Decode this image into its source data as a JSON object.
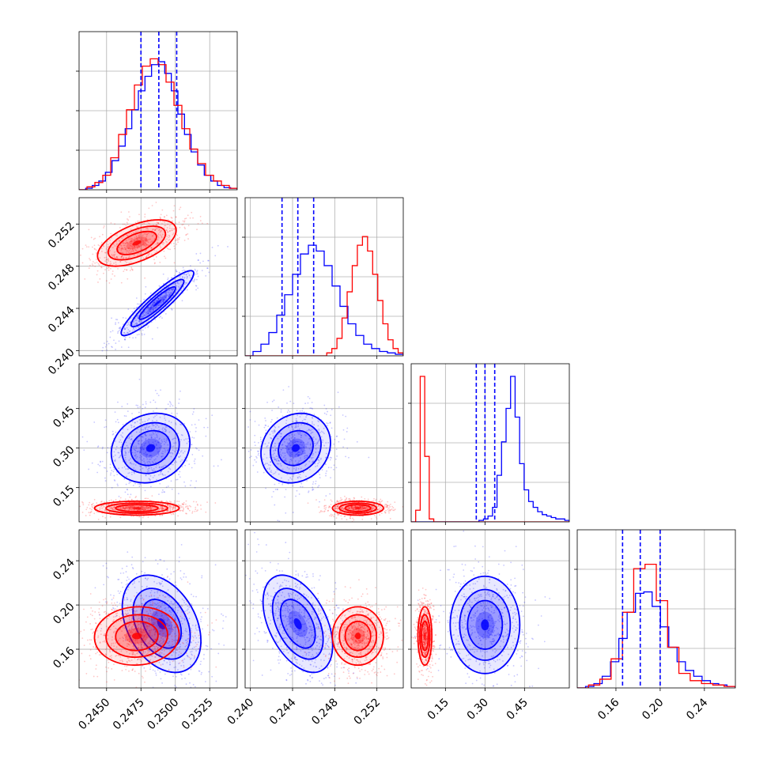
{
  "chart_data": {
    "type": "scatter",
    "colors": {
      "series_a": "#0000ff",
      "series_b": "#ff0000"
    },
    "grid": true,
    "title": "",
    "variables": [
      {
        "range": [
          0.243,
          0.2545
        ],
        "ticks": [
          "0.2450",
          "0.2475",
          "0.2500",
          "0.2525"
        ]
      },
      {
        "range": [
          0.2395,
          0.2545
        ],
        "ticks": [
          "0.240",
          "0.244",
          "0.248",
          "0.252"
        ]
      },
      {
        "range": [
          0.02,
          0.62
        ],
        "ticks": [
          "0.15",
          "0.30",
          "0.45"
        ]
      },
      {
        "range": [
          0.125,
          0.268
        ],
        "ticks": [
          "0.16",
          "0.20",
          "0.24"
        ]
      }
    ],
    "quantiles_series_a": [
      [
        0.2475,
        0.2488,
        0.2501
      ],
      [
        0.243,
        0.2445,
        0.246
      ],
      [
        0.267,
        0.3,
        0.337
      ],
      [
        0.166,
        0.182,
        0.2
      ]
    ],
    "series": [
      {
        "color": "#0000ff",
        "centers": [
          {
            "x": 0.2487,
            "y": 0.2445,
            "sx": 0.0012,
            "sy": 0.0014,
            "rho": 0.92
          },
          {
            "x": 0.2482,
            "y": 0.3,
            "sx": 0.0013,
            "sy": 0.06,
            "rho": 0.15
          },
          {
            "x": 0.2443,
            "y": 0.3,
            "sx": 0.0015,
            "sy": 0.06,
            "rho": 0.15
          },
          {
            "x": 0.249,
            "y": 0.183,
            "sx": 0.0013,
            "sy": 0.02,
            "rho": -0.35
          },
          {
            "x": 0.2445,
            "y": 0.183,
            "sx": 0.0015,
            "sy": 0.02,
            "rho": -0.45
          },
          {
            "x": 0.3,
            "y": 0.182,
            "sx": 0.06,
            "sy": 0.02,
            "rho": 0.0
          }
        ],
        "hist": [
          [
            0,
            0.01,
            0.03,
            0.06,
            0.12,
            0.2,
            0.3,
            0.42,
            0.55,
            0.68,
            0.78,
            0.86,
            0.88,
            0.8,
            0.68,
            0.52,
            0.38,
            0.26,
            0.17,
            0.1,
            0.06,
            0.03,
            0.015,
            0.01
          ],
          [
            0,
            0.03,
            0.08,
            0.16,
            0.28,
            0.42,
            0.56,
            0.7,
            0.76,
            0.72,
            0.62,
            0.48,
            0.34,
            0.22,
            0.14,
            0.08,
            0.05,
            0.03,
            0.02,
            0.01
          ],
          [
            0,
            0,
            0,
            0,
            0,
            0,
            0,
            0,
            0,
            0,
            0,
            0,
            0,
            0,
            0,
            0.01,
            0.02,
            0.04,
            0.1,
            0.32,
            0.55,
            0.78,
            1.0,
            0.72,
            0.4,
            0.22,
            0.14,
            0.1,
            0.07,
            0.05,
            0.04,
            0.03,
            0.02,
            0.02,
            0.01
          ],
          [
            0,
            0.01,
            0.03,
            0.08,
            0.18,
            0.34,
            0.52,
            0.65,
            0.66,
            0.56,
            0.42,
            0.28,
            0.18,
            0.12,
            0.08,
            0.05,
            0.03,
            0.02,
            0.01
          ]
        ]
      },
      {
        "color": "#ff0000",
        "centers": [
          {
            "x": 0.2472,
            "y": 0.2502,
            "sx": 0.0013,
            "sy": 0.001,
            "rho": 0.55
          },
          {
            "x": 0.2472,
            "y": 0.072,
            "sx": 0.0014,
            "sy": 0.012,
            "rho": 0.0
          },
          {
            "x": 0.2502,
            "y": 0.072,
            "sx": 0.0011,
            "sy": 0.012,
            "rho": 0.0
          },
          {
            "x": 0.2472,
            "y": 0.172,
            "sx": 0.0014,
            "sy": 0.012,
            "rho": 0.05
          },
          {
            "x": 0.2502,
            "y": 0.172,
            "sx": 0.0011,
            "sy": 0.012,
            "rho": 0.0
          },
          {
            "x": 0.072,
            "y": 0.172,
            "sx": 0.012,
            "sy": 0.012,
            "rho": 0.0
          }
        ],
        "hist": [
          [
            0,
            0.02,
            0.05,
            0.1,
            0.22,
            0.38,
            0.55,
            0.72,
            0.85,
            0.9,
            0.86,
            0.74,
            0.58,
            0.42,
            0.28,
            0.18,
            0.1,
            0.06,
            0.03,
            0.01
          ],
          [
            0,
            0,
            0,
            0,
            0,
            0,
            0,
            0,
            0,
            0,
            0,
            0,
            0,
            0,
            0,
            0,
            0.02,
            0.05,
            0.12,
            0.26,
            0.44,
            0.62,
            0.76,
            0.82,
            0.72,
            0.56,
            0.38,
            0.22,
            0.11,
            0.05,
            0.02
          ],
          [
            0,
            0.08,
            1.0,
            0.45,
            0.02,
            0,
            0,
            0,
            0,
            0,
            0,
            0,
            0,
            0,
            0,
            0,
            0,
            0,
            0,
            0,
            0,
            0,
            0,
            0,
            0,
            0,
            0,
            0,
            0,
            0,
            0,
            0,
            0,
            0,
            0
          ],
          [
            0,
            0.02,
            0.06,
            0.2,
            0.52,
            0.82,
            0.85,
            0.6,
            0.28,
            0.1,
            0.05,
            0.03,
            0.02,
            0.01
          ]
        ]
      }
    ]
  }
}
